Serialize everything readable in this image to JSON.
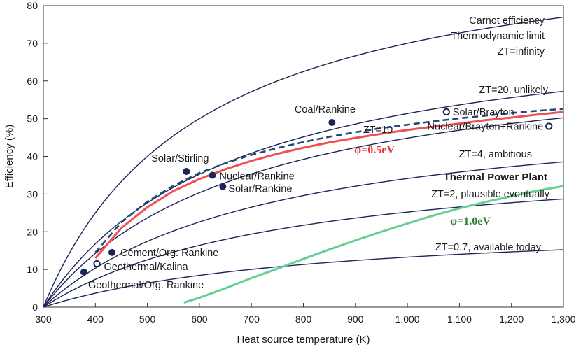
{
  "chart_data": {
    "type": "line",
    "xlabel": "Heat source temperature (K)",
    "ylabel": "Efficiency (%)",
    "xlim": [
      300,
      1300
    ],
    "ylim": [
      0,
      80
    ],
    "x_ticks": [
      300,
      400,
      500,
      600,
      700,
      800,
      900,
      1000,
      1100,
      1200,
      1300
    ],
    "x_tick_labels": [
      "300",
      "400",
      "500",
      "600",
      "700",
      "800",
      "900",
      "1,000",
      "1,100",
      "1,200",
      "1,300"
    ],
    "y_ticks": [
      0,
      10,
      20,
      30,
      40,
      50,
      60,
      70,
      80
    ],
    "y_tick_labels": [
      "0",
      "10",
      "20",
      "30",
      "40",
      "50",
      "60",
      "70",
      "80"
    ],
    "colors": {
      "curve": "#1c2557",
      "red": "#ee5055",
      "dashed": "#23487a",
      "green": "#63cf93",
      "marker": "#1c2557"
    },
    "zt_curves": [
      {
        "name": "Carnot efficiency",
        "zt": "infinity"
      },
      {
        "name": "ZT=20, unlikely",
        "zt": 20
      },
      {
        "name": "ZT=10",
        "zt": 10
      },
      {
        "name": "ZT=4, ambitious",
        "zt": 4
      },
      {
        "name": "ZT=2, plausible eventually",
        "zt": 2
      },
      {
        "name": "ZT=0.7, available today",
        "zt": 0.7
      }
    ],
    "thermal_power_plant_curves": [
      {
        "name": "φ=0.5eV",
        "x": [
          400,
          450,
          500,
          550,
          600,
          650,
          700,
          750,
          800,
          850,
          900,
          950,
          1000,
          1050,
          1100,
          1150,
          1200,
          1250,
          1300
        ],
        "y": [
          13,
          21,
          26.5,
          30.8,
          34,
          36.6,
          38.8,
          40.7,
          42.3,
          43.7,
          44.9,
          46,
          47,
          47.9,
          48.7,
          49.6,
          50.3,
          51.1,
          51.8
        ]
      },
      {
        "name": "φ=1.0eV",
        "x": [
          570,
          600,
          650,
          700,
          750,
          800,
          850,
          900,
          950,
          1000,
          1050,
          1100,
          1150,
          1200,
          1250,
          1300
        ],
        "y": [
          1.2,
          2.5,
          5,
          7.7,
          10.2,
          12.8,
          15.3,
          17.7,
          20,
          22.2,
          24.3,
          26.2,
          27.9,
          29.4,
          30.9,
          32.1
        ]
      },
      {
        "name": "dashed (ZT=10)",
        "x": [
          400,
          450,
          500,
          550,
          600,
          650,
          700,
          750,
          800,
          850,
          900,
          950,
          1000,
          1050,
          1100,
          1150,
          1200,
          1250,
          1300
        ],
        "y": [
          14.5,
          22.5,
          28,
          32.2,
          35.6,
          38.2,
          40.4,
          42.2,
          43.8,
          45.2,
          46.4,
          47.5,
          48.4,
          49.3,
          50.1,
          50.8,
          51.5,
          52.1,
          52.6
        ]
      }
    ],
    "points": [
      {
        "label": "Coal/Rankine",
        "x": 855,
        "y": 49,
        "filled": true
      },
      {
        "label": "Solar/Brayton",
        "x": 1075,
        "y": 51.8,
        "filled": false
      },
      {
        "label": "Nuclear/Brayton+Rankine",
        "x": 1272,
        "y": 48,
        "filled": false
      },
      {
        "label": "Solar/Stirling",
        "x": 575,
        "y": 36,
        "filled": true
      },
      {
        "label": "Nuclear/Rankine",
        "x": 625,
        "y": 35,
        "filled": true
      },
      {
        "label": "Solar/Rankine",
        "x": 645,
        "y": 32,
        "filled": true
      },
      {
        "label": "Cement/Org. Rankine",
        "x": 432,
        "y": 14.5,
        "filled": true
      },
      {
        "label": "Geothermal/Kalina",
        "x": 403,
        "y": 11.5,
        "filled": false
      },
      {
        "label": "Geothermal/Org. Rankine",
        "x": 378,
        "y": 9.3,
        "filled": true
      }
    ]
  },
  "annotations": {
    "carnot_line1": "Carnot efficiency",
    "carnot_line2": "Thermodynamic limit",
    "carnot_line3": "ZT=infinity",
    "zt20": "ZT=20, unlikely",
    "zt10": "ZT=10",
    "phi05": "φ=0.5eV",
    "zt4": "ZT=4, ambitious",
    "thermal_power_plant": "Thermal Power Plant",
    "zt2": "ZT=2, plausible eventually",
    "phi10": "φ=1.0eV",
    "zt07": "ZT=0.7, available today"
  }
}
